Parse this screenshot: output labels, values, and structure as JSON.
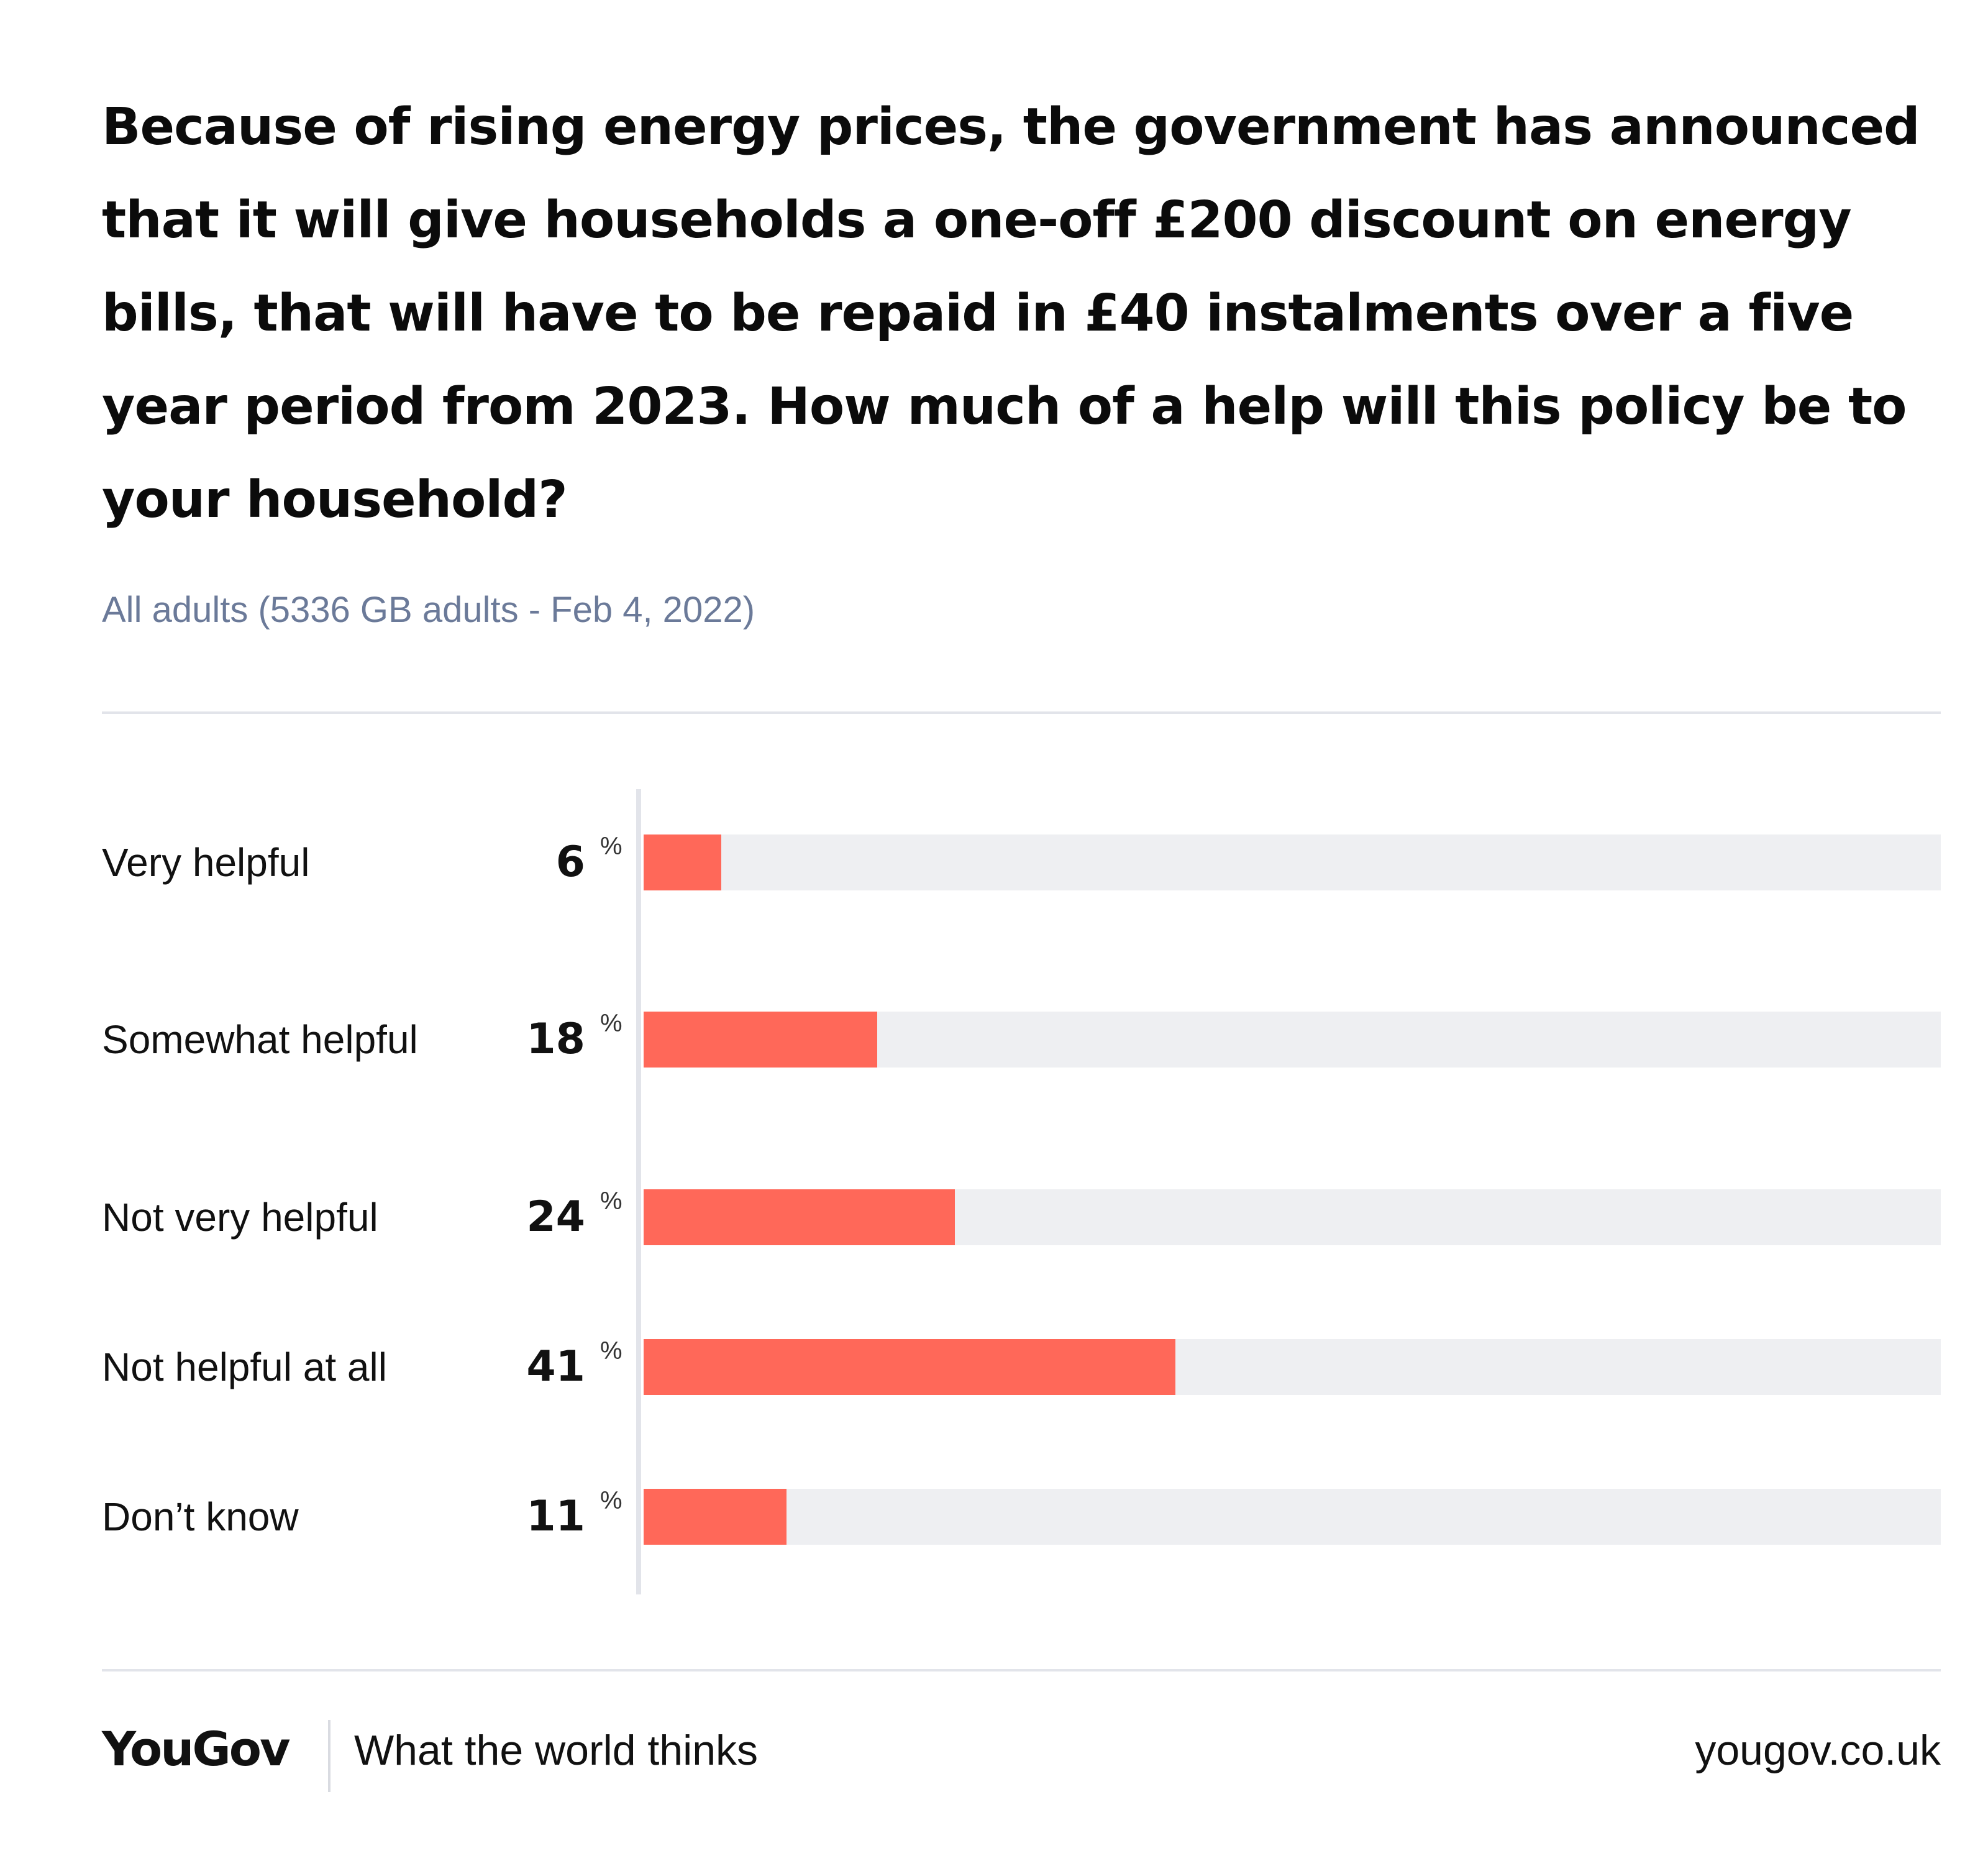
{
  "chart_data": {
    "type": "bar",
    "orientation": "horizontal",
    "title": "Because of rising energy prices, the government has announced that it will give households a one-off £200 discount on energy bills, that will have to be repaid in £40 instalments over a five year period from 2023. How much of a help will this policy be to your household?",
    "subtitle": "All adults (5336 GB adults - Feb 4, 2022)",
    "categories": [
      "Very helpful",
      "Somewhat helpful",
      "Not very helpful",
      "Not helpful at all",
      "Don’t know"
    ],
    "values": [
      6,
      18,
      24,
      41,
      11
    ],
    "unit": "%",
    "xlim": [
      0,
      100
    ],
    "grid": false,
    "bar_color": "#ff6859",
    "track_color": "#eeeff2"
  },
  "footer": {
    "brand": "YouGov",
    "tagline": "What the world thinks",
    "site": "yougov.co.uk"
  }
}
